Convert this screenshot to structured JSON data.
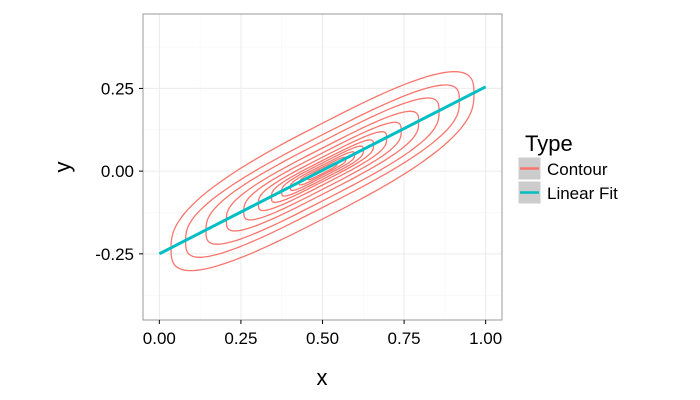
{
  "chart_data": {
    "type": "line",
    "xlabel": "x",
    "ylabel": "y",
    "xlim": [
      -0.05,
      1.05
    ],
    "ylim": [
      -0.45,
      0.475
    ],
    "x_ticks": [
      0.0,
      0.25,
      0.5,
      0.75,
      1.0
    ],
    "x_tick_labels": [
      "0.00",
      "0.25",
      "0.50",
      "0.75",
      "1.00"
    ],
    "y_ticks": [
      -0.25,
      0.0,
      0.25
    ],
    "y_tick_labels": [
      "-0.25",
      "0.00",
      "0.25"
    ],
    "grid": true,
    "legend": {
      "title": "Type",
      "position": "right",
      "entries": [
        {
          "label": "Contour",
          "color": "#F8766D"
        },
        {
          "label": "Linear Fit",
          "color": "#00BFC4"
        }
      ]
    },
    "series": [
      {
        "name": "Linear Fit",
        "type": "line",
        "color": "#00BFC4",
        "x": [
          0.0,
          1.0
        ],
        "y": [
          -0.25,
          0.255
        ]
      },
      {
        "name": "Contour",
        "type": "contour",
        "color": "#F8766D",
        "center": [
          0.5,
          0.0
        ],
        "slope": 0.505,
        "levels": [
          {
            "half_length": 0.05,
            "half_width": 0.007
          },
          {
            "half_length": 0.08,
            "half_width": 0.012
          },
          {
            "half_length": 0.11,
            "half_width": 0.018
          },
          {
            "half_length": 0.14,
            "half_width": 0.025
          },
          {
            "half_length": 0.175,
            "half_width": 0.032
          },
          {
            "half_length": 0.22,
            "half_width": 0.042
          },
          {
            "half_length": 0.27,
            "half_width": 0.055
          },
          {
            "half_length": 0.33,
            "half_width": 0.07
          },
          {
            "half_length": 0.4,
            "half_width": 0.09
          },
          {
            "half_length": 0.47,
            "half_width": 0.11
          },
          {
            "half_length": 0.52,
            "half_width": 0.145
          }
        ]
      }
    ]
  },
  "colors": {
    "panel_border": "#999999",
    "grid_major": "#ebebeb",
    "grid_minor": "#f5f5f5",
    "legend_key_bg": "#cccccc"
  }
}
